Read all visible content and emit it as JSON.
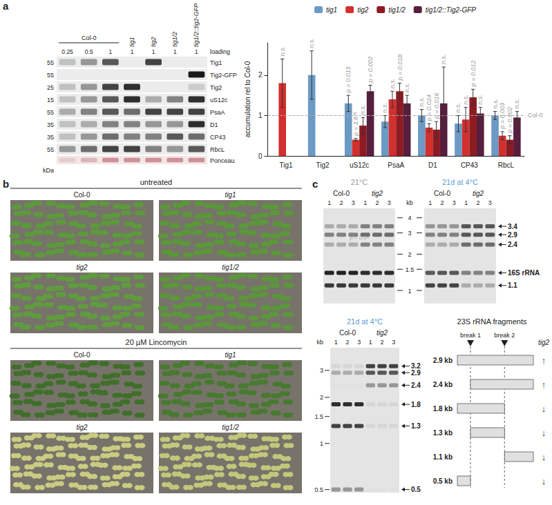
{
  "chart_data": {
    "type": "bar",
    "categories": [
      "Tig1",
      "Tig2",
      "uS12c",
      "PsaA",
      "D1",
      "CP43",
      "RbcL"
    ],
    "ylabel": "accumulation rel to Col-0",
    "ylim": [
      0,
      2.8
    ],
    "yticks": [
      0,
      1,
      2
    ],
    "reference": {
      "value": 1,
      "label": "Col-0"
    },
    "legend": "top",
    "series": [
      {
        "name": "tig1",
        "color": "#6b9ac4",
        "values": [
          null,
          2.0,
          1.3,
          0.85,
          1.0,
          0.8,
          1.0
        ],
        "errors": [
          null,
          0.6,
          0.2,
          0.15,
          0.15,
          0.2,
          0.1
        ],
        "p_labels": [
          null,
          "n.s.",
          "p = 0.015",
          "n.s.",
          "n.s.",
          "n.s.",
          "n.s."
        ]
      },
      {
        "name": "tig2",
        "color": "#d1302e",
        "values": [
          1.8,
          null,
          0.4,
          1.4,
          0.7,
          0.9,
          0.5
        ],
        "errors": [
          0.6,
          null,
          0.03,
          0.2,
          0.1,
          0.3,
          0.1
        ],
        "p_labels": [
          "n.s.",
          null,
          "p = 3.8⁻⁶",
          "n.s.",
          "p = 0.024",
          "n.s.",
          "p = 0.003"
        ]
      },
      {
        "name": "tig1/2",
        "color": "#8e1b22",
        "values": [
          null,
          null,
          0.75,
          1.6,
          0.65,
          1.45,
          0.4
        ],
        "errors": [
          null,
          null,
          0.2,
          0.2,
          0.2,
          0.2,
          0.1
        ],
        "p_labels": [
          null,
          null,
          "n.s.",
          "p = 0.018",
          "p = 0.016",
          "p = 0.012",
          "p = 0.002"
        ]
      },
      {
        "name": "tig1/2::Tig2-GFP",
        "color": "#581e3e",
        "values": [
          null,
          null,
          1.6,
          1.3,
          1.3,
          1.05,
          0.95
        ],
        "errors": [
          null,
          null,
          0.15,
          0.2,
          0.9,
          0.15,
          0.15
        ],
        "p_labels": [
          null,
          null,
          "p = 0.002",
          "n.s.",
          "n.s.",
          "n.s.",
          "n.s."
        ]
      }
    ]
  },
  "panels": {
    "a": {
      "label": "a",
      "group": {
        "label": "Col-0",
        "lanes": 3
      },
      "lane_labels": [
        "tig1",
        "tig2",
        "tig1/2",
        "tig1/2::tig2-GFP"
      ],
      "loading_label": "loading",
      "loading": [
        0.25,
        0.5,
        1,
        1,
        1,
        1,
        1
      ],
      "kda_label": "kDa",
      "rows": [
        {
          "name": "Tig1",
          "kda": 55,
          "bands": [
            0.2,
            0.4,
            0.7,
            0,
            0.8,
            0,
            0
          ]
        },
        {
          "name": "Tig2-GFP",
          "kda": 55,
          "bands": [
            0,
            0,
            0,
            0,
            0,
            0,
            1
          ]
        },
        {
          "name": "Tig2",
          "kda": 25,
          "bands": [
            0.2,
            0.4,
            0.8,
            0.9,
            0,
            0,
            0.15
          ]
        },
        {
          "name": "uS12c",
          "kda": 15,
          "bands": [
            0.2,
            0.4,
            0.7,
            0.9,
            0.3,
            0.5,
            0.9
          ]
        },
        {
          "name": "PsaA",
          "kda": 55,
          "bands": [
            0.3,
            0.5,
            0.7,
            0.6,
            0.8,
            0.8,
            0.8
          ]
        },
        {
          "name": "D1",
          "kda": 35,
          "bands": [
            0.2,
            0.3,
            0.5,
            0.5,
            0.4,
            0.4,
            0.9
          ]
        },
        {
          "name": "CP43",
          "kda": 35,
          "bands": [
            0.2,
            0.4,
            0.6,
            0.5,
            0.5,
            0.7,
            0.6
          ]
        },
        {
          "name": "RbcL",
          "kda": 55,
          "bands": [
            0.4,
            0.6,
            0.8,
            0.8,
            0.5,
            0.4,
            0.7
          ]
        },
        {
          "name": "Ponceau",
          "bands": [
            0.2,
            0.4,
            0.7,
            0.7,
            0.7,
            0.7,
            0.7
          ]
        }
      ]
    },
    "b": {
      "label": "b",
      "groups": [
        {
          "title": "untreated",
          "photos": [
            {
              "label": "Col-0",
              "color": "#5c9a3c"
            },
            {
              "label": "tig1",
              "color": "#5a9839"
            },
            {
              "label": "tig2",
              "color": "#5f9c3e"
            },
            {
              "label": "tig1/2",
              "color": "#5b973b"
            }
          ]
        },
        {
          "title": "20 µM Lincomycin",
          "photos": [
            {
              "label": "Col-0",
              "color": "#3f6f2a"
            },
            {
              "label": "tig1",
              "color": "#477a2f"
            },
            {
              "label": "tig2",
              "color": "#c9cc82"
            },
            {
              "label": "tig1/2",
              "color": "#c3c77c"
            }
          ]
        }
      ]
    },
    "c": {
      "label": "c",
      "top_markers": {
        "unit": "kb",
        "values": [
          4,
          3,
          2,
          1.5,
          1
        ]
      },
      "top_gels": [
        {
          "title": "21°C",
          "groups": [
            "Col-0",
            "tig2"
          ],
          "lane_numbers": [
            1,
            2,
            3,
            1,
            2,
            3
          ],
          "annotation": "p = 2.3⁴",
          "labelled": false,
          "bands": [
            {
              "kb": 3.4,
              "intensity": [
                0.3,
                0.3,
                0.3,
                0.5,
                0.5,
                0.5
              ]
            },
            {
              "kb": 2.9,
              "intensity": [
                0.5,
                0.5,
                0.5,
                0.6,
                0.6,
                0.6
              ]
            },
            {
              "kb": 2.4,
              "intensity": [
                0.3,
                0.3,
                0.3,
                0.5,
                0.5,
                0.5
              ]
            },
            {
              "kb": 1.4,
              "intensity": [
                0.95,
                0.95,
                0.95,
                0.9,
                0.9,
                0.9
              ]
            },
            {
              "kb": 1.1,
              "intensity": [
                0.85,
                0.85,
                0.85,
                0.85,
                0.85,
                0.85
              ]
            }
          ]
        },
        {
          "title": "21d at 4°C",
          "groups": [
            "Col-0",
            "tig2"
          ],
          "lane_numbers": [
            1,
            2,
            3,
            1,
            2,
            3
          ],
          "labelled": true,
          "bands": [
            {
              "kb": 3.4,
              "intensity": [
                0.4,
                0.4,
                0.4,
                0.7,
                0.7,
                0.7
              ]
            },
            {
              "kb": 2.9,
              "intensity": [
                0.5,
                0.5,
                0.5,
                0.7,
                0.7,
                0.7
              ]
            },
            {
              "kb": 2.4,
              "intensity": [
                0.3,
                0.3,
                0.3,
                0.6,
                0.6,
                0.6
              ]
            },
            {
              "kb": 1.4,
              "label": "16S rRNA",
              "intensity": [
                0.7,
                0.7,
                0.7,
                0.5,
                0.5,
                0.5
              ]
            },
            {
              "kb": 1.1,
              "intensity": [
                0.8,
                0.8,
                0.8,
                0.3,
                0.3,
                0.3
              ]
            }
          ]
        }
      ],
      "bottom_gel": {
        "title": "21d at 4°C",
        "groups": [
          "Col-0",
          "tig2"
        ],
        "lane_numbers": [
          1,
          2,
          3,
          1,
          2,
          3
        ],
        "labelled": true,
        "markers": {
          "unit": "kb",
          "values": [
            3,
            2,
            1.5,
            1,
            0.5
          ]
        },
        "bands": [
          {
            "kb": 3.2,
            "intensity": [
              0.1,
              0.1,
              0.1,
              0.8,
              0.8,
              0.8
            ]
          },
          {
            "kb": 2.9,
            "intensity": [
              0.3,
              0.3,
              0.3,
              0.7,
              0.7,
              0.7
            ]
          },
          {
            "kb": 2.4,
            "intensity": [
              0.05,
              0.05,
              0.05,
              0.4,
              0.4,
              0.4
            ]
          },
          {
            "kb": 1.8,
            "intensity": [
              0.9,
              0.9,
              0.9,
              0.1,
              0.1,
              0.1
            ]
          },
          {
            "kb": 1.3,
            "intensity": [
              0.8,
              0.8,
              0.8,
              0.1,
              0.1,
              0.1
            ]
          },
          {
            "kb": 0.5,
            "intensity": [
              0.4,
              0.4,
              0.4,
              0.05,
              0.05,
              0.05
            ]
          }
        ]
      },
      "diagram": {
        "title": "23S rRNA fragments",
        "genotype": "tig2",
        "total_kb": 2.9,
        "breaks": [
          {
            "label": "break 1",
            "kb": 0.5
          },
          {
            "label": "break 2",
            "kb": 1.8
          }
        ],
        "fragments": [
          {
            "label": "2.9 kb",
            "start": 0,
            "end": 2.9,
            "change": "↑"
          },
          {
            "label": "2.4 kb",
            "start": 0.5,
            "end": 2.9,
            "change": "↑"
          },
          {
            "label": "1.8 kb",
            "start": 0,
            "end": 1.8,
            "change": "↓"
          },
          {
            "label": "1.3 kb",
            "start": 0.5,
            "end": 1.8,
            "change": "↓"
          },
          {
            "label": "1.1 kb",
            "start": 1.8,
            "end": 2.9,
            "change": "↓"
          },
          {
            "label": "0.5 kb",
            "start": 0,
            "end": 0.5,
            "change": "↓"
          }
        ]
      }
    }
  }
}
